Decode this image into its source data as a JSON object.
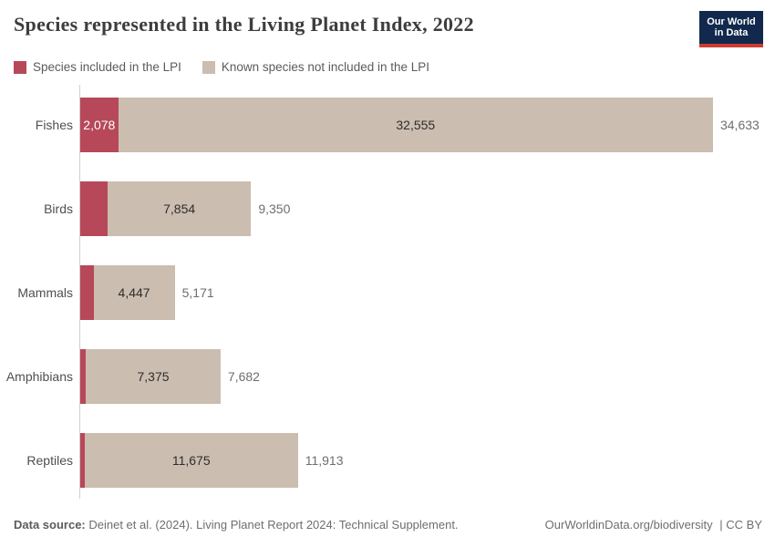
{
  "header": {
    "title": "Species represented in the Living Planet Index, 2022",
    "logo": {
      "line1": "Our World",
      "line2": "in Data",
      "background_color": "#12294d",
      "accent_color": "#cc3b32"
    }
  },
  "legend": [
    {
      "label": "Species included in the LPI",
      "color": "#b6485a"
    },
    {
      "label": "Known species not included in the LPI",
      "color": "#cbbdb0"
    }
  ],
  "chart_data": {
    "type": "bar",
    "orientation": "horizontal",
    "stacked": true,
    "title": "Species represented in the Living Planet Index, 2022",
    "categories": [
      "Fishes",
      "Birds",
      "Mammals",
      "Amphibians",
      "Reptiles"
    ],
    "series": [
      {
        "name": "Species included in the LPI",
        "color": "#b6485a",
        "values": [
          2078,
          1496,
          724,
          307,
          238
        ]
      },
      {
        "name": "Known species not included in the LPI",
        "color": "#cbbdb0",
        "values": [
          32555,
          7854,
          4447,
          7375,
          11675
        ]
      }
    ],
    "totals": [
      34633,
      9350,
      5171,
      7682,
      11913
    ],
    "xlim": [
      0,
      34633
    ],
    "grid": false,
    "legend_position": "top",
    "rows": [
      {
        "category": "Fishes",
        "lpi": 2078,
        "rest": 32555,
        "lpi_label": "2,078",
        "rest_label": "32,555",
        "total_label": "34,633"
      },
      {
        "category": "Birds",
        "lpi": 1496,
        "rest": 7854,
        "lpi_label": "",
        "rest_label": "7,854",
        "total_label": "9,350"
      },
      {
        "category": "Mammals",
        "lpi": 724,
        "rest": 4447,
        "lpi_label": "",
        "rest_label": "4,447",
        "total_label": "5,171"
      },
      {
        "category": "Amphibians",
        "lpi": 307,
        "rest": 7375,
        "lpi_label": "",
        "rest_label": "7,375",
        "total_label": "7,682"
      },
      {
        "category": "Reptiles",
        "lpi": 238,
        "rest": 11675,
        "lpi_label": "",
        "rest_label": "11,675",
        "total_label": "11,913"
      }
    ],
    "axis_color": "#cfcfcf"
  },
  "footer": {
    "source_label": "Data source:",
    "source_text": " Deinet et al. (2024). Living Planet Report 2024: Technical Supplement.",
    "url": "OurWorldinData.org/biodiversity",
    "license": "| CC BY"
  }
}
